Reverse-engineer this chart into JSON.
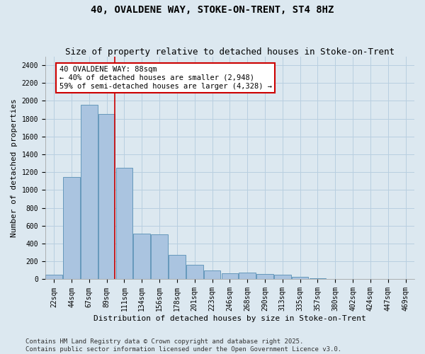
{
  "title": "40, OVALDENE WAY, STOKE-ON-TRENT, ST4 8HZ",
  "subtitle": "Size of property relative to detached houses in Stoke-on-Trent",
  "xlabel": "Distribution of detached houses by size in Stoke-on-Trent",
  "ylabel": "Number of detached properties",
  "categories": [
    "22sqm",
    "44sqm",
    "67sqm",
    "89sqm",
    "111sqm",
    "134sqm",
    "156sqm",
    "178sqm",
    "201sqm",
    "223sqm",
    "246sqm",
    "268sqm",
    "290sqm",
    "313sqm",
    "335sqm",
    "357sqm",
    "380sqm",
    "402sqm",
    "424sqm",
    "447sqm",
    "469sqm"
  ],
  "values": [
    50,
    1150,
    1960,
    1850,
    1250,
    510,
    500,
    270,
    160,
    100,
    65,
    75,
    60,
    50,
    30,
    8,
    5,
    3,
    2,
    1,
    1
  ],
  "bar_color": "#aac4e0",
  "bar_edge_color": "#6699bb",
  "grid_color": "#b8cfe0",
  "background_color": "#dce8f0",
  "plot_bg_color": "#dce8f0",
  "red_line_index": 3,
  "annotation_text": "40 OVALDENE WAY: 88sqm\n← 40% of detached houses are smaller (2,948)\n59% of semi-detached houses are larger (4,328) →",
  "annotation_box_color": "#ffffff",
  "annotation_box_edge_color": "#cc0000",
  "ylim": [
    0,
    2500
  ],
  "yticks": [
    0,
    200,
    400,
    600,
    800,
    1000,
    1200,
    1400,
    1600,
    1800,
    2000,
    2200,
    2400
  ],
  "footer_line1": "Contains HM Land Registry data © Crown copyright and database right 2025.",
  "footer_line2": "Contains public sector information licensed under the Open Government Licence v3.0.",
  "title_fontsize": 10,
  "subtitle_fontsize": 9,
  "axis_label_fontsize": 8,
  "tick_fontsize": 7,
  "annotation_fontsize": 7.5,
  "footer_fontsize": 6.5
}
